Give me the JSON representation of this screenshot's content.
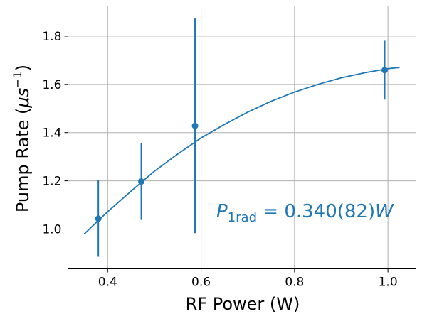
{
  "chart_data": {
    "type": "scatter",
    "xlabel": "RF Power (W)",
    "ylabel": {
      "main": "Pump Rate (",
      "mu": "μ",
      "s": "s",
      "exp": "−1",
      "close": ")"
    },
    "xlim": [
      0.315,
      1.06
    ],
    "ylim": [
      0.835,
      1.925
    ],
    "xticks": [
      0.4,
      0.6,
      0.8,
      1.0
    ],
    "xtick_labels": [
      "0.4",
      "0.6",
      "0.8",
      "1.0"
    ],
    "yticks": [
      1.0,
      1.2,
      1.4,
      1.6,
      1.8
    ],
    "ytick_labels": [
      "1.0",
      "1.2",
      "1.4",
      "1.6",
      "1.8"
    ],
    "grid": true,
    "color": "#1f77b4",
    "points": [
      {
        "x": 0.38,
        "y": 1.043,
        "yerr_low": 0.885,
        "yerr_high": 1.203
      },
      {
        "x": 0.472,
        "y": 1.197,
        "yerr_low": 1.038,
        "yerr_high": 1.355
      },
      {
        "x": 0.587,
        "y": 1.428,
        "yerr_low": 0.983,
        "yerr_high": 1.873
      },
      {
        "x": 0.993,
        "y": 1.659,
        "yerr_low": 1.537,
        "yerr_high": 1.781
      }
    ],
    "fit_curve": {
      "x": [
        0.35,
        0.4,
        0.45,
        0.5,
        0.55,
        0.6,
        0.65,
        0.7,
        0.75,
        0.8,
        0.85,
        0.9,
        0.95,
        1.0,
        1.025
      ],
      "y": [
        0.98,
        1.072,
        1.157,
        1.24,
        1.311,
        1.378,
        1.434,
        1.485,
        1.53,
        1.568,
        1.6,
        1.627,
        1.648,
        1.665,
        1.67
      ]
    },
    "annotation": {
      "symbol": "P",
      "subscript": "1rad",
      "value": " = 0.340(82)",
      "unit": "W"
    }
  }
}
